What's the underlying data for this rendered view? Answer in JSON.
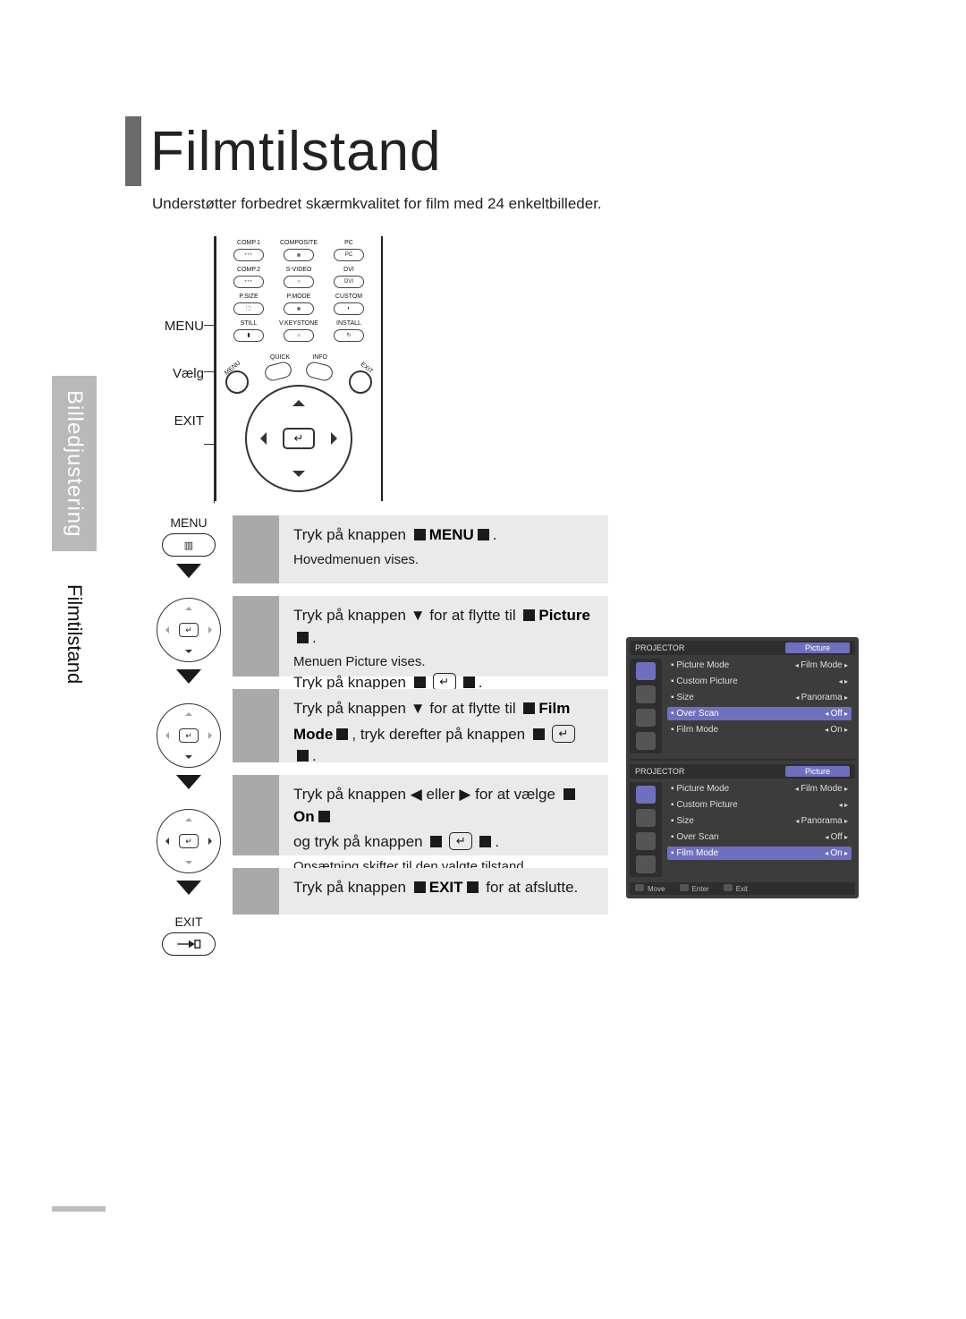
{
  "title": "Filmtilstand",
  "subtitle": "Understøtter forbedret skærmkvalitet for film med 24 enkeltbilleder.",
  "sidebar": {
    "category": "Billedjustering",
    "section": "Filmtilstand"
  },
  "remote": {
    "left_labels": [
      "MENU",
      "Vælg",
      "EXIT"
    ],
    "grid_row1": {
      "labels": [
        "COMP.1",
        "COMPOSITE",
        "PC"
      ]
    },
    "grid_row2": {
      "labels": [
        "COMP.2",
        "S-VIDEO",
        "DVI"
      ]
    },
    "grid_row3": {
      "labels": [
        "P.SIZE",
        "P.MODE",
        "CUSTOM"
      ]
    },
    "grid_row4": {
      "labels": [
        "STILL",
        "V.KEYSTONE",
        "INSTALL"
      ]
    },
    "quick_label": "QUICK",
    "info_label": "INFO",
    "menu_corner": "MENU",
    "exit_corner": "EXIT"
  },
  "steps_icons": {
    "menu_label": "MENU",
    "exit_label": "EXIT"
  },
  "steps": [
    {
      "line1_prefix": "Tryk på knappen",
      "bold": "MENU",
      "line1_suffix": ".",
      "sub": "Hovedmenuen vises."
    },
    {
      "line1_prefix": "Tryk på knappen ▼ for at flytte til",
      "bold": "Picture",
      "line1_suffix": ".",
      "sub": "Menuen Picture vises.",
      "line2_prefix": "Tryk på knappen",
      "line2_suffix": "."
    },
    {
      "line1_prefix": "Tryk på knappen ▼ for at flytte til",
      "bold": "Film",
      "line2_lead": "Mode",
      "line2_mid": ", tryk derefter på knappen",
      "line2_suffix": "."
    },
    {
      "line1_prefix": "Tryk på knappen ◀ eller ▶ for at vælge",
      "bold": "On",
      "line2_prefix": "og tryk på knappen",
      "line2_suffix": ".",
      "sub": "Opsætning skifter til den valgte tilstand."
    },
    {
      "line1_prefix": "Tryk på knappen",
      "bold": "EXIT",
      "line1_suffix": "for at afslutte."
    }
  ],
  "osd": {
    "brand": "PROJECTOR",
    "tab": "Picture",
    "rows_a": [
      {
        "k": "Picture Mode",
        "v": "Film Mode",
        "sel": false
      },
      {
        "k": "Custom Picture",
        "v": "",
        "sel": false
      },
      {
        "k": "Size",
        "v": "Panorama",
        "sel": false
      },
      {
        "k": "Over Scan",
        "v": "Off",
        "sel": true
      },
      {
        "k": "Film Mode",
        "v": "On",
        "sel": false
      }
    ],
    "rows_b": [
      {
        "k": "Picture Mode",
        "v": "Film Mode",
        "sel": false
      },
      {
        "k": "Custom Picture",
        "v": "",
        "sel": false
      },
      {
        "k": "Size",
        "v": "Panorama",
        "sel": false
      },
      {
        "k": "Over Scan",
        "v": "Off",
        "sel": false
      },
      {
        "k": "Film Mode",
        "v": "On",
        "sel": true
      }
    ],
    "footer": [
      "Move",
      "Enter",
      "Exit"
    ]
  },
  "colors": {
    "accent_bar": "#6b6b6b",
    "side_tab_bg": "#b9b9b9",
    "side_tab_text": "#fdfdfd",
    "step_num_bg": "#a9a9a9",
    "step_body_bg": "#eaeaea",
    "osd_bg": "#3c3c3c",
    "osd_panel": "#2e2e2e",
    "osd_hilite": "#6f6fbf",
    "text": "#1a1a1a"
  }
}
